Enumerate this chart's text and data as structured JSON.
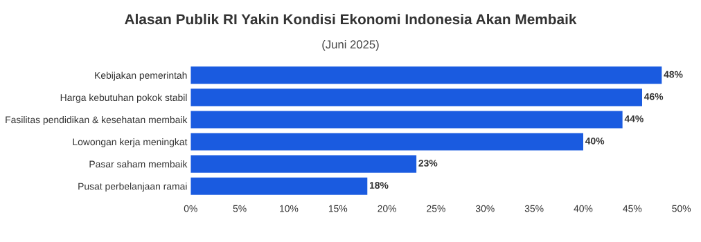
{
  "chart_data": {
    "type": "bar",
    "orientation": "horizontal",
    "title": "Alasan Publik RI Yakin Kondisi Ekonomi Indonesia Akan Membaik",
    "subtitle": "(Juni 2025)",
    "categories": [
      "Kebijakan pemerintah",
      "Harga kebutuhan pokok stabil",
      "Fasilitas pendidikan & kesehatan membaik",
      "Lowongan kerja meningkat",
      "Pasar saham membaik",
      "Pusat perbelanjaan ramai"
    ],
    "values": [
      48,
      46,
      44,
      40,
      23,
      18
    ],
    "value_labels": [
      "48%",
      "46%",
      "44%",
      "40%",
      "23%",
      "18%"
    ],
    "color": "#1a5be0",
    "xlim": [
      0,
      50
    ],
    "xticks": [
      {
        "value": 0,
        "label": "0%"
      },
      {
        "value": 5,
        "label": "5%"
      },
      {
        "value": 10,
        "label": "10%"
      },
      {
        "value": 15,
        "label": "15%"
      },
      {
        "value": 20,
        "label": "20%"
      },
      {
        "value": 25,
        "label": "25%"
      },
      {
        "value": 30,
        "label": "30%"
      },
      {
        "value": 35,
        "label": "35%"
      },
      {
        "value": 40,
        "label": "40%"
      },
      {
        "value": 45,
        "label": "45%"
      },
      {
        "value": 50,
        "label": "50%"
      }
    ],
    "grid": false
  }
}
